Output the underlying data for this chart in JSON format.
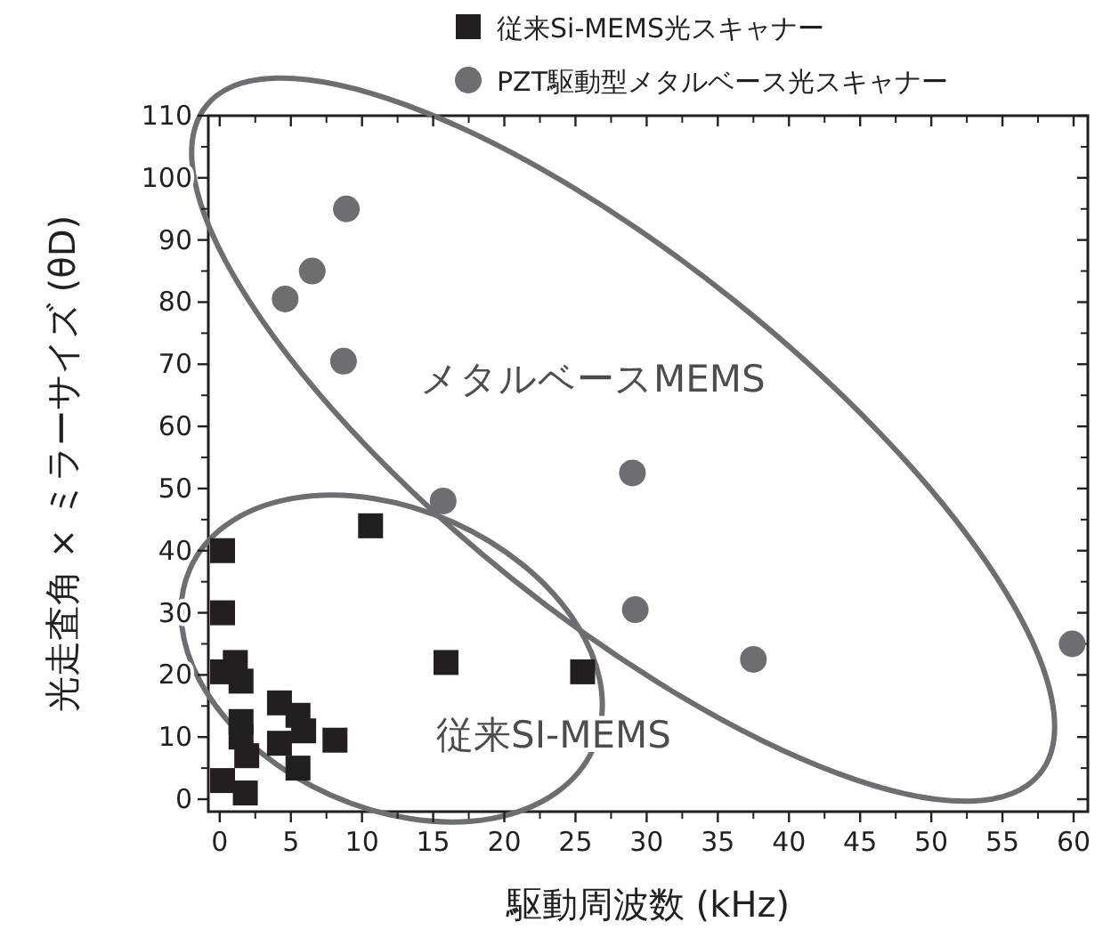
{
  "chart_data": {
    "type": "scatter",
    "xlabel": "駆動周波数 (kHz)",
    "ylabel": "光走査角 × ミラーサイズ (θD)",
    "xlim": [
      -0.8,
      61
    ],
    "ylim": [
      -2,
      110
    ],
    "xticks": [
      0,
      5,
      10,
      15,
      20,
      25,
      30,
      35,
      40,
      45,
      50,
      55,
      60
    ],
    "yticks": [
      0,
      10,
      20,
      30,
      40,
      50,
      60,
      70,
      80,
      90,
      100,
      110
    ],
    "legend": "top",
    "annotations": [
      "メタルベースMEMS",
      "従来SI-MEMS"
    ],
    "series": [
      {
        "name": "従来Si-MEMS光スキャナー",
        "color": "#231f20",
        "marker": "square",
        "x": [
          0.2,
          0.2,
          10.6,
          15.9,
          25.5,
          1.1,
          0.2,
          1.5,
          4.2,
          5.5,
          5.9,
          1.5,
          1.5,
          1.9,
          4.2,
          8.1,
          5.5,
          0.2,
          1.8
        ],
        "values": [
          40,
          30,
          44,
          22,
          20.5,
          22,
          20.5,
          19,
          15.5,
          13.5,
          11,
          12.5,
          10,
          7,
          9,
          9.5,
          5,
          3,
          1
        ]
      },
      {
        "name": "PZT駆動型メタルベース光スキャナー",
        "color": "#6d6e71",
        "marker": "circle",
        "x": [
          8.9,
          6.5,
          4.6,
          8.7,
          15.7,
          29,
          29.2,
          37.5,
          59.9
        ],
        "values": [
          95,
          85,
          80.5,
          70.5,
          48,
          52.5,
          30.5,
          22.5,
          25
        ]
      }
    ]
  }
}
